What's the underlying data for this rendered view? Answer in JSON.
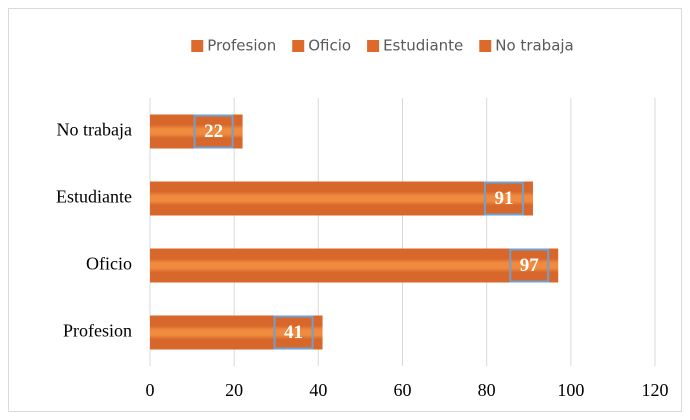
{
  "chart_data": {
    "type": "bar",
    "orientation": "horizontal",
    "categories": [
      "Profesion",
      "Oficio",
      "Estudiante",
      "No trabaja"
    ],
    "values": [
      41,
      97,
      91,
      22
    ],
    "color": "#dd6a2a",
    "xlim": [
      0,
      120
    ],
    "xticks": [
      0,
      20,
      40,
      60,
      80,
      100,
      120
    ],
    "grid": true,
    "legend": "top"
  }
}
